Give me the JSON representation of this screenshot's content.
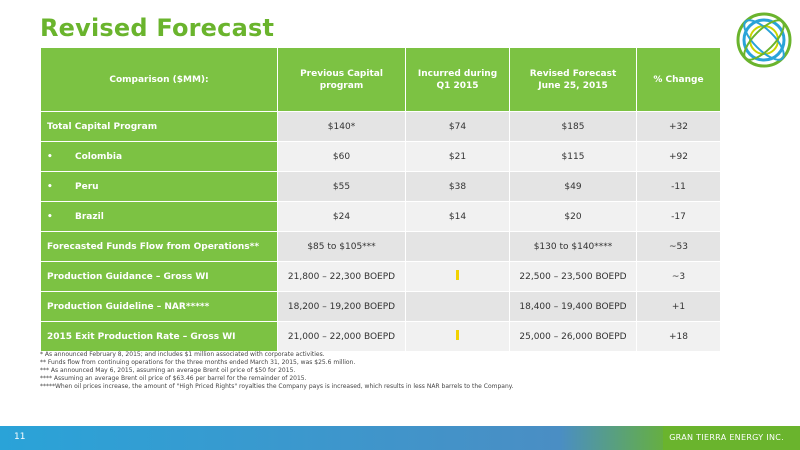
{
  "title": "Revised Forecast",
  "table": {
    "headers": [
      "Comparison ($MM):",
      "Previous Capital\nprogram",
      "Incurred during\nQ1 2015",
      "Revised Forecast\nJune 25, 2015",
      "% Change"
    ],
    "rows": [
      {
        "label": "Total Capital Program",
        "bullet": false,
        "prev": "$140*",
        "q1": "$74",
        "rev": "$185",
        "chg": "+32"
      },
      {
        "label": "Colombia",
        "bullet": true,
        "prev": "$60",
        "q1": "$21",
        "rev": "$115",
        "chg": "+92"
      },
      {
        "label": "Peru",
        "bullet": true,
        "prev": "$55",
        "q1": "$38",
        "rev": "$49",
        "chg": "-11"
      },
      {
        "label": "Brazil",
        "bullet": true,
        "prev": "$24",
        "q1": "$14",
        "rev": "$20",
        "chg": "-17"
      },
      {
        "label": "Forecasted Funds Flow from Operations**",
        "bullet": false,
        "prev": "$85 to $105***",
        "q1": "",
        "rev": "$130 to $140****",
        "chg": "~53"
      },
      {
        "label": "Production Guidance – Gross WI",
        "bullet": false,
        "prev": "21,800 – 22,300 BOEPD",
        "q1": "",
        "rev": "22,500 – 23,500 BOEPD",
        "chg": "~3"
      },
      {
        "label": "Production Guideline – NAR*****",
        "bullet": false,
        "prev": "18,200 – 19,200 BOEPD",
        "q1": "",
        "rev": "18,400 – 19,400 BOEPD",
        "chg": "+1"
      },
      {
        "label": "2015 Exit Production Rate – Gross WI",
        "bullet": false,
        "prev": "21,000 – 22,000 BOEPD",
        "q1": "",
        "rev": "25,000 – 26,000 BOEPD",
        "chg": "+18"
      }
    ]
  },
  "notes": [
    "* As announced February 8, 2015; and includes $1 million associated with corporate activities.",
    "** Funds flow from continuing operations for the three months ended March 31, 2015, was $25.6 million.",
    "*** As announced May 6, 2015, assuming an average Brent oil price of $50 for 2015.",
    "**** Assuming an average Brent oil price of $63.46 per barrel for the remainder of 2015.",
    "*****When oil prices increase, the amount of \"High Priced Rights\" royalties the Company pays is increased, which results in less NAR barrels to the Company."
  ],
  "footer": {
    "page": "11",
    "company": "GRAN TIERRA ENERGY INC."
  },
  "colors": {
    "green": "#7cc243",
    "title": "#6ab42d",
    "blue": "#2aa3d8"
  }
}
